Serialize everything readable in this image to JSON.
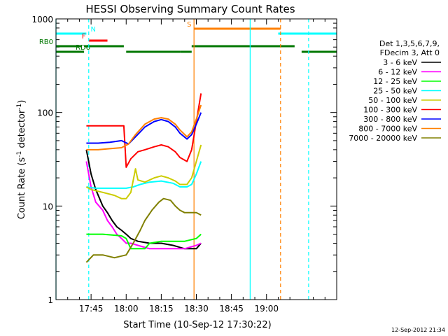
{
  "chart_data": {
    "type": "line",
    "title": "HESSI Observing Summary Count Rates",
    "xlabel": "Start Time (10-Sep-12 17:30:22)",
    "ylabel_main": "Count Rate (s",
    "ylabel_sup1": "-1",
    "ylabel_mid": " detector",
    "ylabel_sup2": "-1",
    "ylabel_end": ")",
    "yscale": "log",
    "ylim": [
      1,
      1000
    ],
    "xlim_minutes": [
      1050,
      1170
    ],
    "x_ticks": [
      {
        "label": "17:45",
        "minutes": 1065
      },
      {
        "label": "18:00",
        "minutes": 1080
      },
      {
        "label": "18:15",
        "minutes": 1095
      },
      {
        "label": "18:30",
        "minutes": 1110
      },
      {
        "label": "18:45",
        "minutes": 1125
      },
      {
        "label": "19:00",
        "minutes": 1140
      }
    ],
    "y_ticks": [
      {
        "label": "1",
        "value": 1
      },
      {
        "label": "10",
        "value": 10
      },
      {
        "label": "100",
        "value": 100
      },
      {
        "label": "1000",
        "value": 1000
      }
    ],
    "legend": {
      "header1": "Det 1,3,5,6,7,9,",
      "header2": "FDecim 3, Att 0",
      "placement": "right"
    },
    "series": [
      {
        "name": "3 - 6 keV",
        "color": "#000000",
        "points": [
          [
            1063,
            40
          ],
          [
            1065,
            22
          ],
          [
            1067,
            15
          ],
          [
            1070,
            10
          ],
          [
            1072,
            8.5
          ],
          [
            1074,
            7
          ],
          [
            1076,
            6
          ],
          [
            1078,
            5.5
          ],
          [
            1080,
            5
          ],
          [
            1082,
            4.5
          ],
          [
            1085,
            4.2
          ],
          [
            1090,
            4
          ],
          [
            1095,
            4
          ],
          [
            1100,
            3.8
          ],
          [
            1105,
            3.5
          ],
          [
            1108,
            3.5
          ],
          [
            1110,
            3.5
          ],
          [
            1112,
            4
          ]
        ]
      },
      {
        "name": "6 - 12 keV",
        "color": "#ff00ff",
        "points": [
          [
            1063,
            30
          ],
          [
            1065,
            16
          ],
          [
            1067,
            11
          ],
          [
            1070,
            9
          ],
          [
            1072,
            7
          ],
          [
            1074,
            6
          ],
          [
            1076,
            5
          ],
          [
            1078,
            4.5
          ],
          [
            1080,
            4
          ],
          [
            1082,
            4
          ],
          [
            1085,
            3.8
          ],
          [
            1090,
            3.5
          ],
          [
            1095,
            3.5
          ],
          [
            1100,
            3.5
          ],
          [
            1105,
            3.5
          ],
          [
            1110,
            3.8
          ],
          [
            1112,
            4
          ]
        ]
      },
      {
        "name": "12 - 25 keV",
        "color": "#00ff00",
        "points": [
          [
            1063,
            5
          ],
          [
            1070,
            5
          ],
          [
            1078,
            4.8
          ],
          [
            1080,
            4.5
          ],
          [
            1082,
            3.5
          ],
          [
            1085,
            3.5
          ],
          [
            1088,
            3.5
          ],
          [
            1090,
            4
          ],
          [
            1095,
            4.2
          ],
          [
            1100,
            4.2
          ],
          [
            1105,
            4.2
          ],
          [
            1110,
            4.5
          ],
          [
            1112,
            5
          ]
        ]
      },
      {
        "name": "25 - 50 keV",
        "color": "#00ffff",
        "points": [
          [
            1063,
            16
          ],
          [
            1067,
            15.5
          ],
          [
            1072,
            15.5
          ],
          [
            1078,
            15.5
          ],
          [
            1080,
            15.5
          ],
          [
            1083,
            16
          ],
          [
            1086,
            17
          ],
          [
            1090,
            18
          ],
          [
            1095,
            18.5
          ],
          [
            1100,
            17.5
          ],
          [
            1103,
            16
          ],
          [
            1106,
            16
          ],
          [
            1108,
            17
          ],
          [
            1110,
            22
          ],
          [
            1112,
            30
          ]
        ]
      },
      {
        "name": "50 - 100 keV",
        "color": "#cccc00",
        "points": [
          [
            1063,
            16
          ],
          [
            1065,
            15
          ],
          [
            1070,
            14
          ],
          [
            1075,
            13
          ],
          [
            1078,
            12
          ],
          [
            1080,
            12
          ],
          [
            1082,
            14
          ],
          [
            1084,
            25
          ],
          [
            1085,
            19
          ],
          [
            1088,
            18
          ],
          [
            1092,
            20
          ],
          [
            1095,
            21
          ],
          [
            1098,
            20
          ],
          [
            1101,
            18.5
          ],
          [
            1103,
            17
          ],
          [
            1106,
            17
          ],
          [
            1108,
            20
          ],
          [
            1110,
            30
          ],
          [
            1112,
            45
          ]
        ]
      },
      {
        "name": "100 - 300 keV",
        "color": "#ff0000",
        "points": [
          [
            1063,
            72
          ],
          [
            1070,
            72
          ],
          [
            1075,
            72
          ],
          [
            1078,
            72
          ],
          [
            1079,
            72
          ],
          [
            1080,
            26
          ],
          [
            1082,
            32
          ],
          [
            1085,
            38
          ],
          [
            1088,
            40
          ],
          [
            1092,
            43
          ],
          [
            1095,
            45
          ],
          [
            1098,
            43
          ],
          [
            1101,
            38
          ],
          [
            1103,
            33
          ],
          [
            1106,
            30
          ],
          [
            1108,
            40
          ],
          [
            1110,
            80
          ],
          [
            1112,
            160
          ]
        ]
      },
      {
        "name": "300 - 800 keV",
        "color": "#0000ff",
        "points": [
          [
            1063,
            47
          ],
          [
            1068,
            47
          ],
          [
            1073,
            48
          ],
          [
            1078,
            50
          ],
          [
            1081,
            46
          ],
          [
            1084,
            55
          ],
          [
            1088,
            70
          ],
          [
            1092,
            80
          ],
          [
            1095,
            84
          ],
          [
            1098,
            80
          ],
          [
            1101,
            70
          ],
          [
            1103,
            60
          ],
          [
            1106,
            52
          ],
          [
            1108,
            58
          ],
          [
            1110,
            75
          ],
          [
            1112,
            100
          ]
        ]
      },
      {
        "name": "800 - 7000 keV",
        "color": "#ff8000",
        "points": [
          [
            1063,
            40
          ],
          [
            1068,
            40
          ],
          [
            1073,
            41
          ],
          [
            1078,
            42
          ],
          [
            1081,
            46
          ],
          [
            1084,
            58
          ],
          [
            1088,
            75
          ],
          [
            1092,
            85
          ],
          [
            1095,
            88
          ],
          [
            1098,
            85
          ],
          [
            1101,
            75
          ],
          [
            1103,
            65
          ],
          [
            1106,
            55
          ],
          [
            1108,
            62
          ],
          [
            1110,
            85
          ],
          [
            1112,
            120
          ]
        ]
      },
      {
        "name": "7000 - 20000 keV",
        "color": "#808000",
        "points": [
          [
            1063,
            2.5
          ],
          [
            1066,
            3
          ],
          [
            1070,
            3
          ],
          [
            1075,
            2.8
          ],
          [
            1080,
            3
          ],
          [
            1083,
            4
          ],
          [
            1086,
            5.5
          ],
          [
            1088,
            7
          ],
          [
            1091,
            9
          ],
          [
            1094,
            11
          ],
          [
            1096,
            12
          ],
          [
            1099,
            11.5
          ],
          [
            1101,
            10
          ],
          [
            1103,
            9
          ],
          [
            1105,
            8.5
          ],
          [
            1107,
            8.5
          ],
          [
            1110,
            8.5
          ],
          [
            1112,
            8
          ]
        ]
      }
    ],
    "state_bars": [
      {
        "label": "RB0",
        "color": "#007700",
        "level": "rb0",
        "segments": [
          [
            1050,
            1061
          ],
          [
            1108,
            1152
          ]
        ]
      },
      {
        "label": "RD6",
        "color": "#007700",
        "level": "rd6",
        "segments": [
          [
            1050,
            1062
          ],
          [
            1080,
            1103
          ],
          [
            1155,
            1170
          ]
        ]
      },
      {
        "label": "",
        "color": "#007700",
        "level": "rb0",
        "segments": [
          [
            1062,
            1079
          ]
        ]
      },
      {
        "label": "",
        "color": "#007700",
        "level": "rd6",
        "segments": [
          [
            1103,
            1108
          ]
        ]
      },
      {
        "label": "N",
        "color": "#00ffff",
        "level": "n",
        "segments": [
          [
            1050,
            1063
          ],
          [
            1145,
            1170
          ]
        ]
      },
      {
        "label": "F",
        "color": "#ff0000",
        "level": "f",
        "segments": [
          [
            1064,
            1072
          ]
        ]
      },
      {
        "label": "S",
        "color": "#ff8000",
        "level": "s",
        "segments": [
          [
            1109,
            1146
          ]
        ]
      }
    ],
    "vlines": [
      {
        "minutes": 1050,
        "color": "#00ffff",
        "style": "solid"
      },
      {
        "minutes": 1064,
        "color": "#00ffff",
        "style": "dashed"
      },
      {
        "minutes": 1109,
        "color": "#ff8000",
        "style": "solid"
      },
      {
        "minutes": 1133,
        "color": "#00ffff",
        "style": "solid"
      },
      {
        "minutes": 1146,
        "color": "#ff8000",
        "style": "dashed"
      },
      {
        "minutes": 1158,
        "color": "#00ffff",
        "style": "dashed"
      }
    ],
    "grid": false
  },
  "footer": {
    "timestamp": "12-Sep-2012 21:34"
  }
}
